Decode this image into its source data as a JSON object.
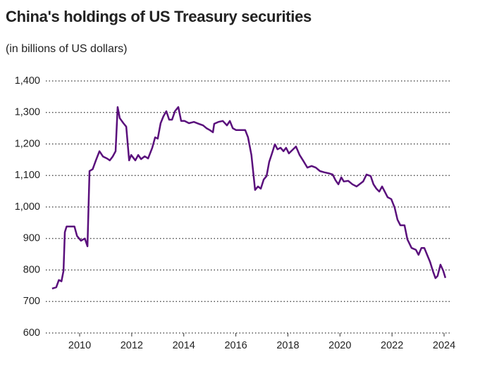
{
  "chart_data": {
    "type": "line",
    "title": "China's holdings of US Treasury securities",
    "subtitle": "(in billions of US dollars)",
    "x": [
      2008.94,
      2009.1,
      2009.2,
      2009.3,
      2009.38,
      2009.43,
      2009.5,
      2009.8,
      2009.9,
      2010.05,
      2010.2,
      2010.3,
      2010.38,
      2010.5,
      2010.62,
      2010.76,
      2010.9,
      2011.05,
      2011.16,
      2011.27,
      2011.38,
      2011.46,
      2011.54,
      2011.68,
      2011.79,
      2011.9,
      2011.98,
      2012.14,
      2012.25,
      2012.36,
      2012.5,
      2012.63,
      2012.79,
      2012.9,
      2013.0,
      2013.11,
      2013.22,
      2013.33,
      2013.44,
      2013.55,
      2013.66,
      2013.79,
      2013.9,
      2014.03,
      2014.2,
      2014.39,
      2014.58,
      2014.74,
      2014.87,
      2015.0,
      2015.12,
      2015.17,
      2015.33,
      2015.5,
      2015.66,
      2015.77,
      2015.88,
      2016.01,
      2016.2,
      2016.36,
      2016.47,
      2016.6,
      2016.74,
      2016.85,
      2016.96,
      2017.07,
      2017.18,
      2017.28,
      2017.39,
      2017.5,
      2017.6,
      2017.72,
      2017.83,
      2017.93,
      2018.04,
      2018.2,
      2018.31,
      2018.45,
      2018.58,
      2018.75,
      2018.91,
      2019.07,
      2019.23,
      2019.4,
      2019.56,
      2019.72,
      2019.83,
      2019.94,
      2020.05,
      2020.15,
      2020.32,
      2020.48,
      2020.64,
      2020.75,
      2020.89,
      2021.02,
      2021.18,
      2021.29,
      2021.4,
      2021.51,
      2021.62,
      2021.72,
      2021.83,
      2021.97,
      2022.1,
      2022.21,
      2022.32,
      2022.48,
      2022.59,
      2022.75,
      2022.92,
      2023.02,
      2023.13,
      2023.24,
      2023.35,
      2023.46,
      2023.57,
      2023.67,
      2023.75,
      2023.86,
      2023.97,
      2024.05
    ],
    "series": [
      {
        "color": "#5a0f7c",
        "values": [
          741,
          745,
          768,
          764,
          797,
          920,
          938,
          938,
          908,
          893,
          900,
          875,
          1114,
          1120,
          1147,
          1177,
          1160,
          1154,
          1148,
          1160,
          1177,
          1317,
          1282,
          1266,
          1255,
          1148,
          1165,
          1148,
          1165,
          1152,
          1161,
          1154,
          1188,
          1221,
          1217,
          1266,
          1288,
          1304,
          1277,
          1277,
          1304,
          1317,
          1273,
          1273,
          1266,
          1270,
          1264,
          1259,
          1250,
          1244,
          1237,
          1264,
          1270,
          1273,
          1259,
          1273,
          1250,
          1244,
          1244,
          1244,
          1221,
          1165,
          1054,
          1065,
          1058,
          1087,
          1098,
          1143,
          1170,
          1199,
          1183,
          1188,
          1177,
          1188,
          1170,
          1183,
          1192,
          1165,
          1148,
          1125,
          1130,
          1125,
          1114,
          1110,
          1107,
          1103,
          1085,
          1072,
          1094,
          1081,
          1083,
          1072,
          1065,
          1072,
          1081,
          1103,
          1098,
          1072,
          1058,
          1049,
          1065,
          1049,
          1031,
          1025,
          998,
          960,
          942,
          942,
          897,
          870,
          864,
          848,
          870,
          870,
          848,
          826,
          797,
          774,
          781,
          817,
          797,
          775
        ]
      }
    ],
    "xlim": [
      2008.7,
      2024.27
    ],
    "xticks": [
      2010,
      2012,
      2014,
      2016,
      2018,
      2020,
      2022,
      2024
    ],
    "ylim": [
      600,
      1400
    ],
    "yticks": [
      600,
      700,
      800,
      900,
      {
        "value": 1000,
        "label": "1,000"
      },
      {
        "value": 1100,
        "label": "1,100"
      },
      {
        "value": 1200,
        "label": "1,200"
      },
      {
        "value": 1300,
        "label": "1,300"
      },
      {
        "value": 1400,
        "label": "1,400"
      }
    ],
    "grid": true
  }
}
